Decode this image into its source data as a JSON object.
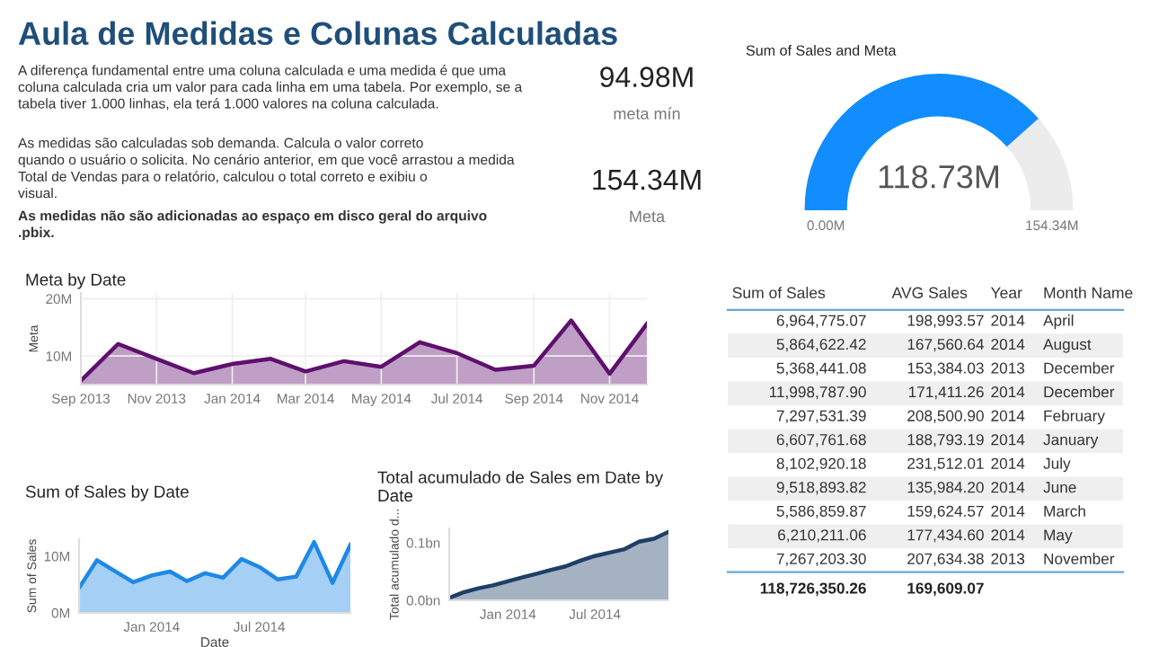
{
  "chart_data": [
    {
      "type": "other",
      "title": "Aula de Medidas e Colunas Calculadas",
      "annotations": [
        "A diferença fundamental entre uma coluna calculada e uma medida é que uma\ncoluna calculada cria um valor para cada linha em uma tabela. Por exemplo, se a\ntabela tiver 1.000 linhas, ela terá 1.000 valores na coluna calculada.",
        "As medidas são calculadas sob demanda. Calcula o valor correto\nquando o usuário o solicita. No cenário anterior, em que você arrastou a medida\nTotal de Vendas para o relatório, calculou o total correto e exibiu o\nvisual.",
        "As medidas não são adicionadas ao espaço em disco geral do arquivo\n.pbix."
      ]
    },
    {
      "type": "other",
      "annotations": [
        "94.98M",
        "meta mín",
        "154.34M",
        "Meta"
      ]
    },
    {
      "type": "donut",
      "title": "Sum of Sales and Meta",
      "categories": [
        null,
        null
      ],
      "values": [
        76.93,
        23.07
      ],
      "colors": [
        "#118dff",
        "#ececec"
      ],
      "annotations": [
        "118.73M",
        "0.00M",
        "154.34M"
      ]
    },
    {
      "type": "area",
      "title": "Meta by Date",
      "ylabel": "Meta",
      "x": [
        "2013-09",
        "2013-10",
        "2013-11",
        "2013-12",
        "2014-01",
        "2014-02",
        "2014-03",
        "2014-04",
        "2014-05",
        "2014-06",
        "2014-07",
        "2014-08",
        "2014-09",
        "2014-10",
        "2014-11",
        "2014-12"
      ],
      "series": [
        {
          "color": "#5f0f6e",
          "values": [
            5.7,
            12.1,
            9.5,
            7.0,
            8.6,
            9.5,
            7.3,
            9.1,
            8.1,
            12.4,
            10.5,
            7.6,
            8.3,
            16.2,
            6.9,
            15.6
          ]
        }
      ],
      "xlim": [
        "2013-09",
        "2014-12"
      ],
      "xticks": [
        {
          "value": "2013-09",
          "label": "Sep 2013"
        },
        {
          "value": "2013-11",
          "label": "Nov 2013"
        },
        {
          "value": "2014-01",
          "label": "Jan 2014"
        },
        {
          "value": "2014-03",
          "label": "Mar 2014"
        },
        {
          "value": "2014-05",
          "label": "May 2014"
        },
        {
          "value": "2014-07",
          "label": "Jul 2014"
        },
        {
          "value": "2014-09",
          "label": "Sep 2014"
        },
        {
          "value": "2014-11",
          "label": "Nov 2014"
        }
      ],
      "ylim": [
        5,
        21
      ],
      "yticks": [
        {
          "value": 10,
          "label": "10M"
        },
        {
          "value": 20,
          "label": "20M"
        }
      ],
      "grid": true
    },
    {
      "type": "other",
      "categories": [
        "Sum of Sales",
        "AVG Sales",
        "Year",
        "Month Name"
      ],
      "cell_labels": [
        [
          "6,964,775.07",
          "198,993.57",
          "2014",
          "April"
        ],
        [
          "5,864,622.42",
          "167,560.64",
          "2014",
          "August"
        ],
        [
          "5,368,441.08",
          "153,384.03",
          "2013",
          "December"
        ],
        [
          "11,998,787.90",
          "171,411.26",
          "2014",
          "December"
        ],
        [
          "7,297,531.39",
          "208,500.90",
          "2014",
          "February"
        ],
        [
          "6,607,761.68",
          "188,793.19",
          "2014",
          "January"
        ],
        [
          "8,102,920.18",
          "231,512.01",
          "2014",
          "July"
        ],
        [
          "9,518,893.82",
          "135,984.20",
          "2014",
          "June"
        ],
        [
          "5,586,859.87",
          "159,624.57",
          "2014",
          "March"
        ],
        [
          "6,210,211.06",
          "177,434.60",
          "2014",
          "May"
        ],
        [
          "7,267,203.30",
          "207,634.38",
          "2013",
          "November"
        ]
      ],
      "totals": [
        "118,726,350.26",
        "169,609.07"
      ]
    },
    {
      "type": "area",
      "title": "Sum of Sales by Date",
      "xlabel": "Date",
      "ylabel": "Sum of Sales",
      "x": [
        "2013-09",
        "2013-10",
        "2013-11",
        "2013-12",
        "2014-01",
        "2014-02",
        "2014-03",
        "2014-04",
        "2014-05",
        "2014-06",
        "2014-07",
        "2014-08",
        "2014-09",
        "2014-10",
        "2014-11",
        "2014-12"
      ],
      "series": [
        {
          "color": "#1e88e5",
          "values": [
            4.4,
            9.3,
            7.3,
            5.4,
            6.6,
            7.3,
            5.6,
            7.0,
            6.2,
            9.5,
            8.1,
            5.9,
            6.4,
            12.5,
            5.3,
            12.0
          ]
        }
      ],
      "xlim": [
        "2013-09",
        "2014-12"
      ],
      "xticks": [
        {
          "value": "2014-01",
          "label": "Jan 2014"
        },
        {
          "value": "2014-07",
          "label": "Jul 2014"
        }
      ],
      "ylim": [
        0,
        13
      ],
      "yticks": [
        {
          "value": 0,
          "label": "0M"
        },
        {
          "value": 10,
          "label": "10M"
        }
      ]
    },
    {
      "type": "area",
      "title": "Total acumulado de Sales em Date by\nDate",
      "ylabel": "Total acumulado d...",
      "x": [
        "2013-09",
        "2013-10",
        "2013-11",
        "2013-12",
        "2014-01",
        "2014-02",
        "2014-03",
        "2014-04",
        "2014-05",
        "2014-06",
        "2014-07",
        "2014-08",
        "2014-09",
        "2014-10",
        "2014-11",
        "2014-12"
      ],
      "series": [
        {
          "color": "#1f3f66",
          "values": [
            0.004,
            0.014,
            0.021,
            0.026,
            0.033,
            0.04,
            0.046,
            0.053,
            0.059,
            0.069,
            0.077,
            0.083,
            0.089,
            0.102,
            0.107,
            0.119
          ]
        }
      ],
      "xlim": [
        "2013-09",
        "2014-12"
      ],
      "xticks": [
        {
          "value": "2014-01",
          "label": "Jan 2014"
        },
        {
          "value": "2014-07",
          "label": "Jul 2014"
        }
      ],
      "ylim": [
        0,
        0.125
      ],
      "yticks": [
        {
          "value": 0,
          "label": "0.0bn"
        },
        {
          "value": 0.1,
          "label": "0.1bn"
        }
      ]
    }
  ]
}
